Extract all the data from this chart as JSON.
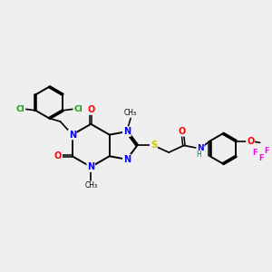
{
  "background_color": "#EFEFEF",
  "bond_color": "#000000",
  "atom_colors": {
    "N": "#0000FF",
    "O": "#FF0000",
    "S": "#CCCC00",
    "Cl": "#00AA00",
    "F": "#FF00FF",
    "C": "#000000",
    "H": "#008080"
  },
  "figsize": [
    3.0,
    3.0
  ],
  "dpi": 100
}
